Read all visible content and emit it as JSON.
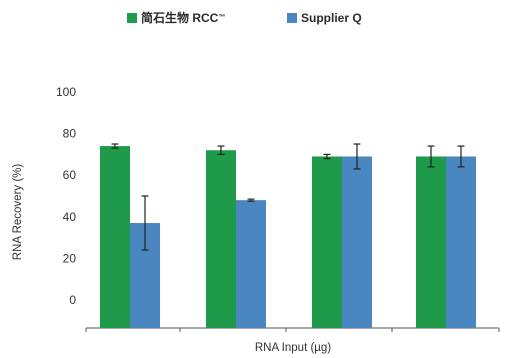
{
  "chart_data": {
    "type": "bar",
    "title": "",
    "xlabel": "RNA Input (µg)",
    "ylabel": "RNA Recovery (%)",
    "ylim": [
      0,
      100
    ],
    "yticks": [
      0,
      20,
      40,
      60,
      80,
      100
    ],
    "categories": [
      "",
      "",
      "",
      ""
    ],
    "legend_position": "top",
    "grid": false,
    "series": [
      {
        "name": "简石生物 RCC",
        "name_mark": "™",
        "color": "#1e9a4a",
        "values": [
          74,
          72,
          69,
          69
        ],
        "errors": [
          1,
          2,
          1,
          5
        ]
      },
      {
        "name": "Supplier Q",
        "color": "#4a86c0",
        "values": [
          37,
          48,
          69,
          69
        ],
        "errors": [
          13,
          0.5,
          6,
          5
        ]
      }
    ]
  }
}
